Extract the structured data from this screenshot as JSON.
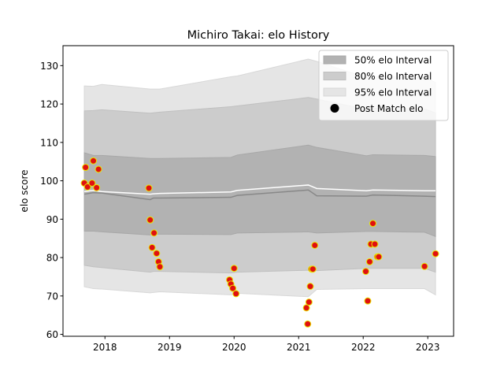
{
  "chart_data": {
    "type": "scatter",
    "title": "Michiro Takai: elo History",
    "xlabel": "",
    "ylabel": "elo score",
    "xlim": [
      2017.35,
      2023.4
    ],
    "ylim": [
      59.5,
      135.2
    ],
    "x_ticks": [
      2018,
      2019,
      2020,
      2021,
      2022,
      2023
    ],
    "y_ticks": [
      60,
      70,
      80,
      90,
      100,
      110,
      120,
      130
    ],
    "grid": false,
    "legend": {
      "placement": "top-right",
      "entries": [
        "50% elo Interval",
        "80% elo Interval",
        "95% elo Interval",
        "Post Match elo"
      ]
    },
    "colors": {
      "band50": "#b2b2b2",
      "band80": "#cccccc",
      "band95": "#e5e5e5",
      "median_line": "#888888",
      "mean_line": "#ffffff",
      "marker_fill": "#e01010",
      "marker_edge": "#e8e800"
    },
    "bands": {
      "x": [
        2017.68,
        2017.82,
        2017.95,
        2018.7,
        2018.75,
        2018.85,
        2019.95,
        2020.05,
        2021.15,
        2021.28,
        2022.05,
        2022.15,
        2022.95,
        2023.12
      ],
      "p2_5": [
        72.4,
        71.9,
        71.8,
        70.8,
        70.9,
        71.1,
        70.3,
        70.7,
        69.8,
        71.7,
        71.9,
        71.9,
        71.9,
        70.3
      ],
      "p10": [
        78.0,
        77.6,
        77.4,
        76.2,
        76.4,
        76.4,
        76.0,
        76.2,
        76.7,
        76.6,
        77.2,
        77.2,
        77.2,
        76.2
      ],
      "p25": [
        86.9,
        86.9,
        86.7,
        85.9,
        86.1,
        86.1,
        86.0,
        86.4,
        86.7,
        86.4,
        86.8,
        86.8,
        86.6,
        85.5
      ],
      "p50": [
        96.5,
        96.9,
        96.8,
        95.1,
        95.5,
        95.5,
        95.7,
        96.2,
        97.6,
        96.1,
        96.0,
        96.3,
        96.0,
        95.9
      ],
      "mean": [
        97.2,
        97.5,
        97.2,
        96.5,
        96.6,
        96.7,
        97.1,
        97.5,
        98.9,
        98.0,
        97.4,
        97.6,
        97.4,
        97.4
      ],
      "p75": [
        107.3,
        106.6,
        106.6,
        105.8,
        105.8,
        105.8,
        106.1,
        106.7,
        109.3,
        108.7,
        106.5,
        106.8,
        106.6,
        106.3
      ],
      "p90": [
        118.2,
        118.3,
        118.5,
        117.6,
        117.7,
        117.9,
        119.3,
        119.5,
        121.7,
        121.3,
        118.6,
        118.9,
        118.7,
        117.7
      ],
      "p97_5": [
        124.7,
        124.6,
        125.1,
        123.9,
        123.9,
        123.9,
        127.1,
        127.3,
        131.7,
        131.1,
        126.9,
        127.1,
        127.0,
        125.6
      ]
    },
    "series": [
      {
        "name": "Post Match elo",
        "x": [
          2017.68,
          2017.7,
          2017.73,
          2017.8,
          2017.82,
          2017.87,
          2017.9,
          2018.68,
          2018.7,
          2018.73,
          2018.76,
          2018.8,
          2018.83,
          2018.85,
          2019.93,
          2019.95,
          2019.98,
          2020.0,
          2020.03,
          2021.12,
          2021.14,
          2021.16,
          2021.18,
          2021.2,
          2021.22,
          2021.25,
          2022.04,
          2022.07,
          2022.1,
          2022.12,
          2022.15,
          2022.18,
          2022.22,
          2022.24,
          2022.95,
          2023.12
        ],
        "y": [
          99.4,
          103.5,
          98.4,
          99.4,
          105.2,
          98.2,
          103.0,
          98.1,
          89.8,
          82.6,
          86.4,
          81.1,
          78.9,
          77.6,
          74.2,
          73.1,
          72.0,
          77.2,
          70.6,
          66.9,
          62.7,
          68.4,
          72.5,
          77.0,
          77.0,
          83.2,
          76.4,
          68.7,
          78.9,
          83.5,
          88.9,
          83.5,
          80.2,
          80.2,
          77.7,
          81.0
        ]
      }
    ]
  }
}
